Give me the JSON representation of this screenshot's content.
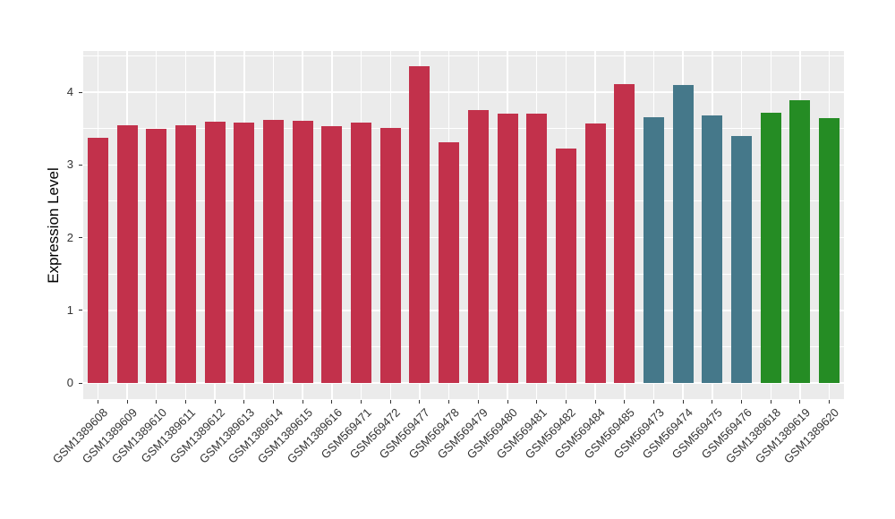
{
  "figure": {
    "background": "#FFFFFF"
  },
  "chart_data": {
    "type": "bar",
    "title": "",
    "xlabel": "",
    "ylabel": "Expression Level",
    "ylim": [
      0,
      4.57
    ],
    "y_ticks": [
      0,
      1,
      2,
      3,
      4
    ],
    "grid": "on",
    "legend": "none",
    "panel_bg": "#EBEBEB",
    "grid_color": "#FFFFFF",
    "tick_color": "#333333",
    "categories": [
      "GSM1389608",
      "GSM1389609",
      "GSM1389610",
      "GSM1389611",
      "GSM1389612",
      "GSM1389613",
      "GSM1389614",
      "GSM1389615",
      "GSM1389616",
      "GSM569471",
      "GSM569472",
      "GSM569477",
      "GSM569478",
      "GSM569479",
      "GSM569480",
      "GSM569481",
      "GSM569482",
      "GSM569484",
      "GSM569485",
      "GSM569473",
      "GSM569474",
      "GSM569475",
      "GSM569476",
      "GSM1389618",
      "GSM1389619",
      "GSM1389620"
    ],
    "values": [
      3.37,
      3.54,
      3.49,
      3.54,
      3.59,
      3.58,
      3.62,
      3.61,
      3.53,
      3.58,
      3.51,
      4.36,
      3.31,
      3.75,
      3.71,
      3.7,
      3.22,
      3.57,
      4.11,
      3.65,
      4.1,
      3.68,
      3.4,
      3.72,
      3.89,
      3.64
    ],
    "groups": [
      "red",
      "red",
      "red",
      "red",
      "red",
      "red",
      "red",
      "red",
      "red",
      "red",
      "red",
      "red",
      "red",
      "red",
      "red",
      "red",
      "red",
      "red",
      "red",
      "teal",
      "teal",
      "teal",
      "teal",
      "green",
      "green",
      "green"
    ],
    "group_colors": {
      "red": "#C2314B",
      "teal": "#45788A",
      "green": "#258C24"
    }
  }
}
